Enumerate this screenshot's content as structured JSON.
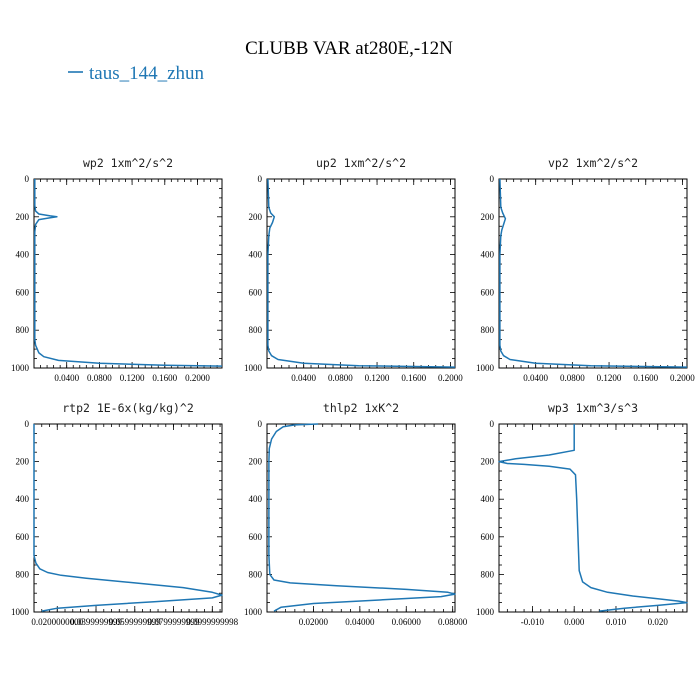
{
  "figure": {
    "title": "CLUBB VAR at280E,-12N",
    "legend_label": "taus_144_zhun",
    "line_color": "#1f77b4"
  },
  "chart_data": [
    {
      "type": "line",
      "title": "wp2  1xm^2/s^2",
      "xlim": [
        0,
        0.23
      ],
      "ylim": [
        1000,
        0
      ],
      "y_inverted": true,
      "xticks": [
        0.04,
        0.08,
        0.12,
        0.16,
        0.2
      ],
      "xtick_labels": [
        "0.0400",
        "0.0800",
        "0.1200",
        "0.1600",
        "0.2000"
      ],
      "yticks": [
        0,
        200,
        400,
        600,
        800,
        1000
      ],
      "ytick_labels": [
        "0",
        "200",
        "400",
        "600",
        "800",
        "1000"
      ],
      "series": [
        {
          "x": [
            0.001,
            0.001,
            0.002,
            0.006,
            0.02,
            0.028,
            0.02,
            0.006,
            0.002,
            0.001,
            0.001,
            0.001,
            0.001,
            0.001,
            0.002,
            0.006,
            0.012,
            0.03,
            0.08,
            0.16,
            0.23
          ],
          "y": [
            0,
            140,
            170,
            185,
            195,
            200,
            205,
            215,
            240,
            280,
            400,
            600,
            800,
            850,
            880,
            920,
            940,
            960,
            975,
            985,
            990
          ]
        }
      ]
    },
    {
      "type": "line",
      "title": "up2  1xm^2/s^2",
      "xlim": [
        0,
        0.205
      ],
      "ylim": [
        1000,
        0
      ],
      "y_inverted": true,
      "xticks": [
        0.04,
        0.08,
        0.12,
        0.16,
        0.2
      ],
      "xtick_labels": [
        "0.0400",
        "0.0800",
        "0.1200",
        "0.1600",
        "0.2000"
      ],
      "yticks": [
        0,
        200,
        400,
        600,
        800,
        1000
      ],
      "ytick_labels": [
        "0",
        "200",
        "400",
        "600",
        "800",
        "1000"
      ],
      "series": [
        {
          "x": [
            0.001,
            0.002,
            0.004,
            0.008,
            0.006,
            0.003,
            0.002,
            0.001,
            0.001,
            0.001,
            0.001,
            0.002,
            0.005,
            0.012,
            0.04,
            0.1,
            0.205
          ],
          "y": [
            0,
            150,
            180,
            200,
            230,
            260,
            300,
            400,
            600,
            800,
            880,
            910,
            935,
            955,
            975,
            988,
            995
          ]
        }
      ]
    },
    {
      "type": "line",
      "title": "vp2  1xm^2/s^2",
      "xlim": [
        0,
        0.205
      ],
      "ylim": [
        1000,
        0
      ],
      "y_inverted": true,
      "xticks": [
        0.04,
        0.08,
        0.12,
        0.16,
        0.2
      ],
      "xtick_labels": [
        "0.0400",
        "0.0800",
        "0.1200",
        "0.1600",
        "0.2000"
      ],
      "yticks": [
        0,
        200,
        400,
        600,
        800,
        1000
      ],
      "ytick_labels": [
        "0",
        "200",
        "400",
        "600",
        "800",
        "1000"
      ],
      "series": [
        {
          "x": [
            0.001,
            0.002,
            0.004,
            0.007,
            0.005,
            0.003,
            0.002,
            0.001,
            0.001,
            0.001,
            0.001,
            0.002,
            0.005,
            0.012,
            0.04,
            0.1,
            0.205
          ],
          "y": [
            0,
            150,
            180,
            210,
            240,
            270,
            300,
            400,
            600,
            800,
            880,
            910,
            935,
            955,
            975,
            988,
            995
          ]
        }
      ]
    },
    {
      "type": "line",
      "title": "rtp2  1E-6x(kg/kg)^2",
      "xlim": [
        0.008,
        0.105
      ],
      "ylim": [
        1000,
        0
      ],
      "y_inverted": true,
      "xticks": [
        0.02,
        0.04,
        0.06,
        0.08,
        0.1
      ],
      "xtick_labels": [
        "0.0200000000",
        "0.0399999999",
        "0.0599999999",
        "0.0799999999",
        "0.0999999998"
      ],
      "yticks": [
        0,
        200,
        400,
        600,
        800,
        1000
      ],
      "ytick_labels": [
        "0",
        "200",
        "400",
        "600",
        "800",
        "1000"
      ],
      "series": [
        {
          "x": [
            0.008,
            0.008,
            0.008,
            0.009,
            0.011,
            0.015,
            0.022,
            0.035,
            0.06,
            0.085,
            0.1,
            0.105,
            0.1,
            0.07,
            0.04,
            0.02,
            0.012
          ],
          "y": [
            0,
            650,
            700,
            740,
            770,
            790,
            805,
            820,
            845,
            870,
            895,
            910,
            925,
            945,
            965,
            980,
            995
          ]
        }
      ]
    },
    {
      "type": "line",
      "title": "thlp2  1xK^2",
      "xlim": [
        0,
        0.081
      ],
      "ylim": [
        1000,
        0
      ],
      "y_inverted": true,
      "xticks": [
        0.02,
        0.04,
        0.06,
        0.08
      ],
      "xtick_labels": [
        "0.02000",
        "0.04000",
        "0.06000",
        "0.08000"
      ],
      "yticks": [
        0,
        200,
        400,
        600,
        800,
        1000
      ],
      "ytick_labels": [
        "0",
        "200",
        "400",
        "600",
        "800",
        "1000"
      ],
      "series": [
        {
          "x": [
            0.022,
            0.012,
            0.007,
            0.004,
            0.002,
            0.001,
            0.0008,
            0.0008,
            0.0008,
            0.0012,
            0.003,
            0.01,
            0.03,
            0.06,
            0.078,
            0.081,
            0.075,
            0.05,
            0.02,
            0.006,
            0.003
          ],
          "y": [
            0,
            5,
            15,
            40,
            80,
            130,
            200,
            400,
            700,
            800,
            830,
            845,
            860,
            880,
            895,
            905,
            918,
            935,
            955,
            975,
            995
          ]
        }
      ]
    },
    {
      "type": "line",
      "title": "wp3  1xm^3/s^3",
      "xlim": [
        -0.018,
        0.027
      ],
      "ylim": [
        1000,
        0
      ],
      "y_inverted": true,
      "xticks": [
        -0.01,
        0,
        0.01,
        0.02
      ],
      "xtick_labels": [
        "-0.010",
        "0.000",
        "0.010",
        "0.020"
      ],
      "yticks": [
        0,
        200,
        400,
        600,
        800,
        1000
      ],
      "ytick_labels": [
        "0",
        "200",
        "400",
        "600",
        "800",
        "1000"
      ],
      "series": [
        {
          "x": [
            0.0,
            0.0,
            -0.006,
            -0.014,
            -0.018,
            -0.016,
            -0.012,
            -0.006,
            -0.001,
            0.0003,
            0.0006,
            0.0009,
            0.0012,
            0.002,
            0.004,
            0.008,
            0.014,
            0.02,
            0.025,
            0.027,
            0.02,
            0.012,
            0.006
          ],
          "y": [
            0,
            140,
            165,
            185,
            200,
            210,
            215,
            225,
            240,
            270,
            400,
            600,
            780,
            840,
            870,
            895,
            915,
            930,
            942,
            950,
            965,
            980,
            995
          ]
        }
      ]
    }
  ]
}
